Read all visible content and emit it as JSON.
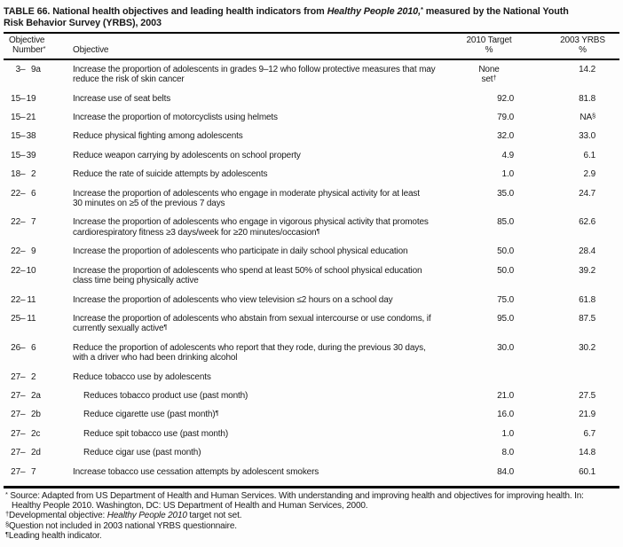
{
  "title": {
    "part1": "TABLE 66. National health objectives and leading health indicators from ",
    "italic": "Healthy People 2010,",
    "sup": "*",
    "part2": " measured by the National Youth\nRisk Behavior Survey (YRBS), 2003"
  },
  "header": {
    "col1_line1": "Objective",
    "col1_line2": "Number",
    "col1_sup": "*",
    "col2": "Objective",
    "col3_line1": "2010 Target",
    "col3_line2": "%",
    "col4_line1": "2003 YRBS",
    "col4_line2": "%"
  },
  "rows": [
    {
      "hi": "3",
      "lo": "9",
      "sfx": "a",
      "indent": false,
      "obj": "Increase the proportion of adolescents in grades 9–12 who follow protective measures that may\nreduce the risk of skin cancer",
      "obj_sup": "",
      "target": "None\nset",
      "target_sup": "†",
      "yrbs": "14.2",
      "yrbs_sup": ""
    },
    {
      "hi": "15",
      "lo": "19",
      "sfx": "",
      "indent": false,
      "obj": "Increase use of seat belts",
      "obj_sup": "",
      "target": "92.0",
      "target_sup": "",
      "yrbs": "81.8",
      "yrbs_sup": ""
    },
    {
      "hi": "15",
      "lo": "21",
      "sfx": "",
      "indent": false,
      "obj": "Increase the proportion of motorcyclists using helmets",
      "obj_sup": "",
      "target": "79.0",
      "target_sup": "",
      "yrbs": "NA",
      "yrbs_sup": "§"
    },
    {
      "hi": "15",
      "lo": "38",
      "sfx": "",
      "indent": false,
      "obj": "Reduce physical fighting among adolescents",
      "obj_sup": "",
      "target": "32.0",
      "target_sup": "",
      "yrbs": "33.0",
      "yrbs_sup": ""
    },
    {
      "hi": "15",
      "lo": "39",
      "sfx": "",
      "indent": false,
      "obj": "Reduce weapon carrying by adolescents on school property",
      "obj_sup": "",
      "target": "4.9",
      "target_sup": "",
      "yrbs": "6.1",
      "yrbs_sup": ""
    },
    {
      "hi": "18",
      "lo": "2",
      "sfx": "",
      "indent": false,
      "obj": "Reduce the rate of suicide attempts by adolescents",
      "obj_sup": "",
      "target": "1.0",
      "target_sup": "",
      "yrbs": "2.9",
      "yrbs_sup": ""
    },
    {
      "hi": "22",
      "lo": "6",
      "sfx": "",
      "indent": false,
      "obj": "Increase the proportion of adolescents who engage in moderate physical activity for at least\n30 minutes on ≥5 of the previous 7 days",
      "obj_sup": "",
      "target": "35.0",
      "target_sup": "",
      "yrbs": "24.7",
      "yrbs_sup": ""
    },
    {
      "hi": "22",
      "lo": "7",
      "sfx": "",
      "indent": false,
      "obj": "Increase the proportion of adolescents who engage in vigorous physical activity that promotes\ncardiorespiratory fitness ≥3 days/week for ≥20 minutes/occasion",
      "obj_sup": "¶",
      "target": "85.0",
      "target_sup": "",
      "yrbs": "62.6",
      "yrbs_sup": ""
    },
    {
      "hi": "22",
      "lo": "9",
      "sfx": "",
      "indent": false,
      "obj": "Increase the proportion of adolescents who participate in daily school physical education",
      "obj_sup": "",
      "target": "50.0",
      "target_sup": "",
      "yrbs": "28.4",
      "yrbs_sup": ""
    },
    {
      "hi": "22",
      "lo": "10",
      "sfx": "",
      "indent": false,
      "obj": "Increase the proportion of adolescents who spend at least 50% of school physical education\nclass time being physically active",
      "obj_sup": "",
      "target": "50.0",
      "target_sup": "",
      "yrbs": "39.2",
      "yrbs_sup": ""
    },
    {
      "hi": "22",
      "lo": "11",
      "sfx": "",
      "indent": false,
      "obj": "Increase the proportion of adolescents who view television ≤2 hours on a school day",
      "obj_sup": "",
      "target": "75.0",
      "target_sup": "",
      "yrbs": "61.8",
      "yrbs_sup": ""
    },
    {
      "hi": "25",
      "lo": "11",
      "sfx": "",
      "indent": false,
      "obj": "Increase the proportion of adolescents who abstain from sexual intercourse or use condoms, if\ncurrently sexually active",
      "obj_sup": "¶",
      "target": "95.0",
      "target_sup": "",
      "yrbs": "87.5",
      "yrbs_sup": ""
    },
    {
      "hi": "26",
      "lo": "6",
      "sfx": "",
      "indent": false,
      "obj": "Reduce the proportion of adolescents who report that they rode, during the previous 30 days,\nwith a driver who had been drinking alcohol",
      "obj_sup": "",
      "target": "30.0",
      "target_sup": "",
      "yrbs": "30.2",
      "yrbs_sup": ""
    },
    {
      "hi": "27",
      "lo": "2",
      "sfx": "",
      "indent": false,
      "obj": "Reduce tobacco use by adolescents",
      "obj_sup": "",
      "target": "",
      "target_sup": "",
      "yrbs": "",
      "yrbs_sup": ""
    },
    {
      "hi": "27",
      "lo": "2",
      "sfx": "a",
      "indent": true,
      "obj": "Reduces tobacco product use (past month)",
      "obj_sup": "",
      "target": "21.0",
      "target_sup": "",
      "yrbs": "27.5",
      "yrbs_sup": ""
    },
    {
      "hi": "27",
      "lo": "2",
      "sfx": "b",
      "indent": true,
      "obj": "Reduce cigarette use (past month)",
      "obj_sup": "¶",
      "target": "16.0",
      "target_sup": "",
      "yrbs": "21.9",
      "yrbs_sup": ""
    },
    {
      "hi": "27",
      "lo": "2",
      "sfx": "c",
      "indent": true,
      "obj": "Reduce spit tobacco use (past month)",
      "obj_sup": "",
      "target": "1.0",
      "target_sup": "",
      "yrbs": "6.7",
      "yrbs_sup": ""
    },
    {
      "hi": "27",
      "lo": "2",
      "sfx": "d",
      "indent": true,
      "obj": "Reduce cigar use (past month)",
      "obj_sup": "",
      "target": "8.0",
      "target_sup": "",
      "yrbs": "14.8",
      "yrbs_sup": ""
    },
    {
      "hi": "27",
      "lo": "7",
      "sfx": "",
      "indent": false,
      "obj": "Increase tobacco use cessation attempts by adolescent smokers",
      "obj_sup": "",
      "target": "84.0",
      "target_sup": "",
      "yrbs": "60.1",
      "yrbs_sup": ""
    }
  ],
  "footnotes": [
    {
      "marker": "*",
      "pre": " Source: Adapted from US Department of Health and Human Services. With understanding and improving health and objectives for improving health. In:\nHealthy People 2010. Washington, DC: US Department of Health and Human Services, 2000.",
      "italic": "",
      "post": ""
    },
    {
      "marker": "†",
      "pre": "Developmental objective: ",
      "italic": "Healthy People 2010",
      "post": " target not set."
    },
    {
      "marker": "§",
      "pre": "Question not included in 2003 national YRBS questionnaire.",
      "italic": "",
      "post": ""
    },
    {
      "marker": "¶",
      "pre": "Leading health indicator.",
      "italic": "",
      "post": ""
    }
  ]
}
